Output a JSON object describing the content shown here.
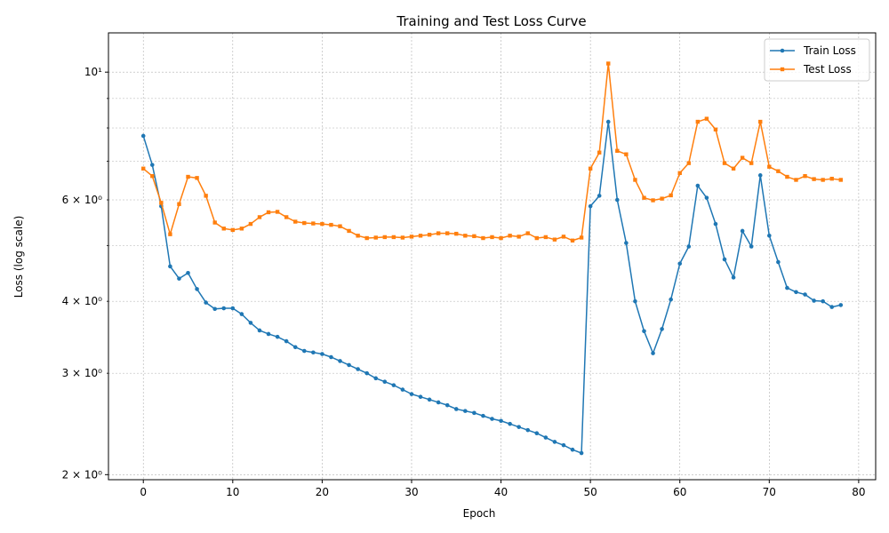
{
  "chart_data": {
    "type": "line",
    "title": "Training and Test Loss Curve",
    "xlabel": "Epoch",
    "ylabel": "Loss (log scale)",
    "yscale": "log",
    "xlim": [
      -3.9,
      81.9
    ],
    "ylim": [
      1.96,
      11.7
    ],
    "grid": true,
    "legend_position": "top-right",
    "x_ticks": [
      0,
      10,
      20,
      30,
      40,
      50,
      60,
      70,
      80
    ],
    "x_tick_labels": [
      "0",
      "10",
      "20",
      "30",
      "40",
      "50",
      "60",
      "70",
      "80"
    ],
    "y_major_ticks": [
      2,
      10
    ],
    "y_major_tick_labels": [
      "2 × 10⁰",
      "10¹"
    ],
    "y_minor_ticks": [
      3,
      4,
      6
    ],
    "y_minor_tick_labels": [
      "3 × 10⁰",
      "4 × 10⁰",
      "6 × 10⁰"
    ],
    "y_minor_grid": [
      3,
      4,
      5,
      6,
      7,
      8,
      9
    ],
    "x": [
      0,
      1,
      2,
      3,
      4,
      5,
      6,
      7,
      8,
      9,
      10,
      11,
      12,
      13,
      14,
      15,
      16,
      17,
      18,
      19,
      20,
      21,
      22,
      23,
      24,
      25,
      26,
      27,
      28,
      29,
      30,
      31,
      32,
      33,
      34,
      35,
      36,
      37,
      38,
      39,
      40,
      41,
      42,
      43,
      44,
      45,
      46,
      47,
      48,
      49,
      50,
      51,
      52,
      53,
      54,
      55,
      56,
      57,
      58,
      59,
      60,
      61,
      62,
      63,
      64,
      65,
      66,
      67,
      68,
      69,
      70,
      71,
      72,
      73,
      74,
      75,
      76,
      77,
      78
    ],
    "series": [
      {
        "name": "Train Loss",
        "color": "#1f77b4",
        "marker": "circle",
        "values": [
          7.75,
          6.9,
          5.85,
          4.6,
          4.38,
          4.48,
          4.2,
          3.98,
          3.88,
          3.89,
          3.89,
          3.8,
          3.67,
          3.56,
          3.51,
          3.47,
          3.41,
          3.33,
          3.28,
          3.26,
          3.24,
          3.2,
          3.15,
          3.1,
          3.05,
          3.0,
          2.94,
          2.9,
          2.86,
          2.81,
          2.76,
          2.73,
          2.7,
          2.67,
          2.64,
          2.6,
          2.58,
          2.56,
          2.53,
          2.5,
          2.48,
          2.45,
          2.42,
          2.39,
          2.36,
          2.32,
          2.28,
          2.25,
          2.21,
          2.18,
          5.85,
          6.1,
          8.2,
          6.0,
          5.05,
          4.0,
          3.55,
          3.25,
          3.58,
          4.03,
          4.65,
          4.98,
          6.35,
          6.05,
          5.45,
          4.73,
          4.4,
          5.3,
          4.98,
          6.62,
          5.2,
          4.68,
          4.22,
          4.15,
          4.11,
          4.01,
          4.0,
          3.91,
          3.94
        ]
      },
      {
        "name": "Test Loss",
        "color": "#ff7f0e",
        "marker": "square",
        "values": [
          6.8,
          6.6,
          5.93,
          5.23,
          5.9,
          6.58,
          6.55,
          6.1,
          5.48,
          5.35,
          5.32,
          5.35,
          5.45,
          5.6,
          5.71,
          5.72,
          5.6,
          5.5,
          5.47,
          5.46,
          5.45,
          5.43,
          5.4,
          5.3,
          5.2,
          5.15,
          5.16,
          5.17,
          5.17,
          5.16,
          5.18,
          5.2,
          5.22,
          5.25,
          5.25,
          5.24,
          5.2,
          5.19,
          5.15,
          5.17,
          5.15,
          5.2,
          5.18,
          5.25,
          5.15,
          5.17,
          5.12,
          5.18,
          5.1,
          5.16,
          6.8,
          7.25,
          10.35,
          7.3,
          7.2,
          6.5,
          6.05,
          5.99,
          6.03,
          6.11,
          6.68,
          6.95,
          8.2,
          8.3,
          7.95,
          6.95,
          6.8,
          7.1,
          6.95,
          8.2,
          6.85,
          6.73,
          6.58,
          6.5,
          6.6,
          6.52,
          6.5,
          6.53,
          6.5
        ]
      }
    ]
  }
}
